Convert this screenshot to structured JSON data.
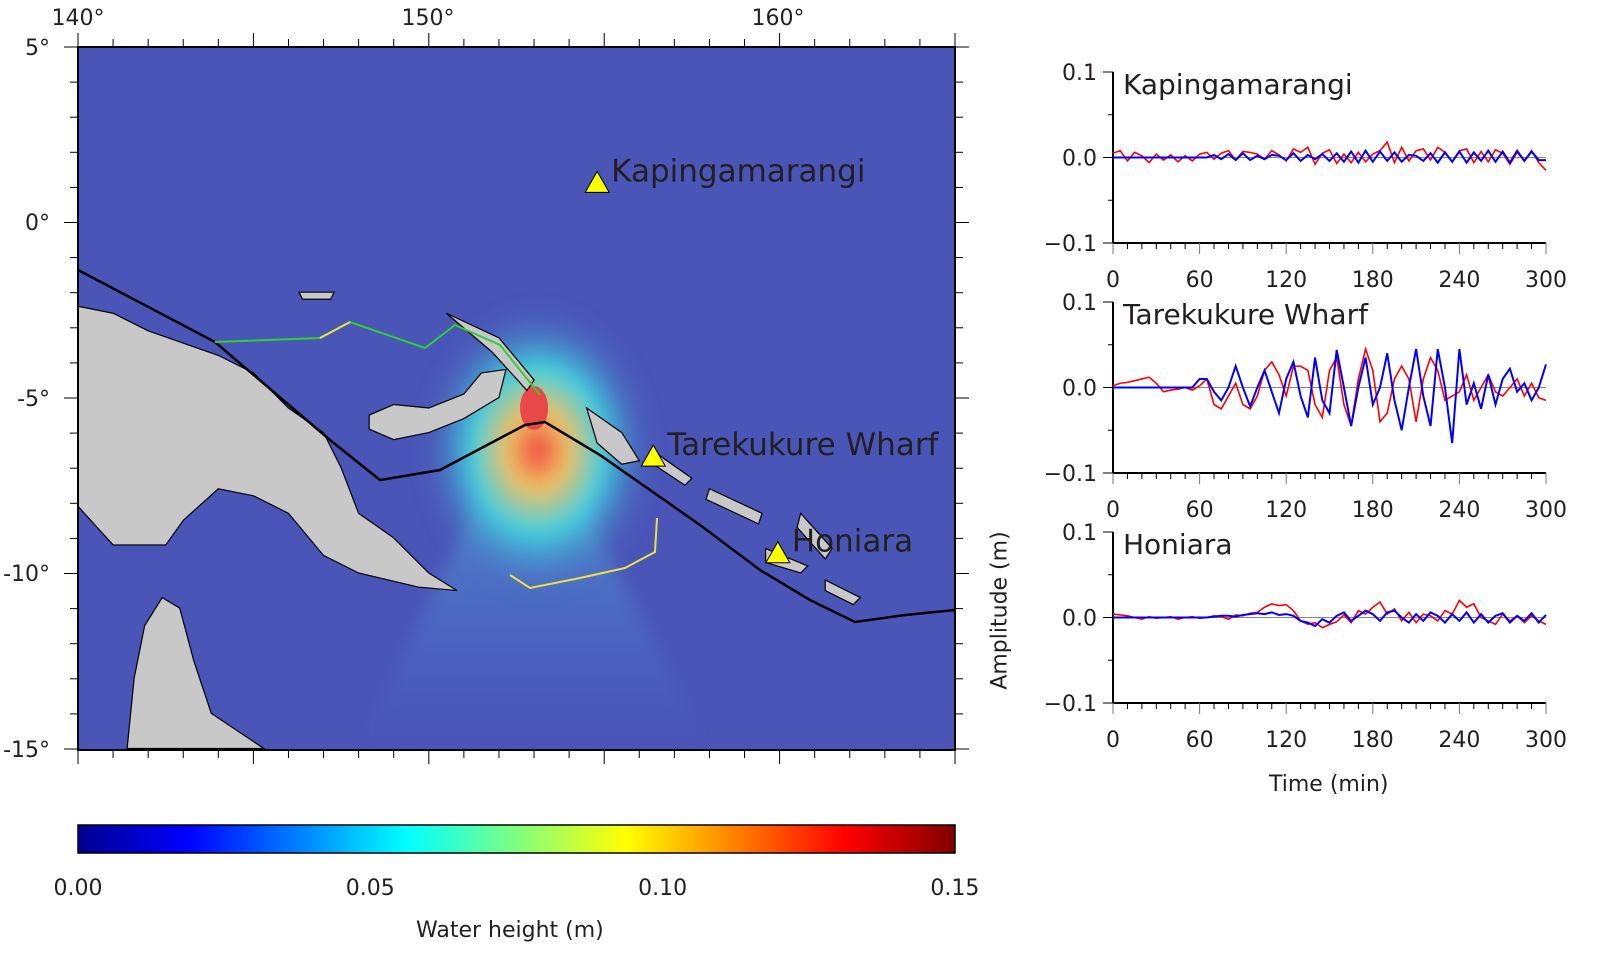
{
  "map": {
    "lon_labels": [
      "140°",
      "150°",
      "160°"
    ],
    "lat_labels": [
      "5°",
      "0°",
      "-5°",
      "-10°",
      "-15°"
    ],
    "stations": [
      {
        "name": "Kapingamarangi",
        "lon": 154.8,
        "lat": 1.1
      },
      {
        "name": "Tarekukure Wharf",
        "lon": 156.4,
        "lat": -6.7
      },
      {
        "name": "Honiara",
        "lon": 159.95,
        "lat": -9.45
      }
    ],
    "ocean_color": "#4a55b8",
    "land_color": "#c8c8c8",
    "marker_color": "#ffff00"
  },
  "colorbar": {
    "label": "Water height (m)",
    "ticks": [
      "0.00",
      "0.05",
      "0.10",
      "0.15"
    ],
    "range": [
      0,
      0.15
    ],
    "colormap": "jet"
  },
  "chart_data": [
    {
      "type": "line",
      "title": "Kapingamarangi",
      "xlabel": "Time (min)",
      "ylabel": "Amplitude (m)",
      "xlim": [
        0,
        300
      ],
      "ylim": [
        -0.1,
        0.1
      ],
      "xticks": [
        "0",
        "60",
        "120",
        "180",
        "240",
        "300"
      ],
      "yticks": [
        "0.1",
        "0.0",
        "−0.1"
      ],
      "x_start": 0,
      "x_step": 5,
      "series": [
        {
          "color": "#ff0000",
          "values": [
            0.005,
            0.008,
            -0.004,
            0.006,
            0.002,
            -0.006,
            0.004,
            -0.003,
            0.003,
            -0.005,
            0.002,
            -0.004,
            0.004,
            0.006,
            -0.002,
            0.005,
            0.008,
            -0.003,
            0.007,
            0.006,
            0.004,
            -0.002,
            0.008,
            0.003,
            -0.004,
            0.01,
            0.006,
            0.012,
            -0.008,
            0.005,
            0.009,
            -0.007,
            0.004,
            -0.006,
            0.006,
            -0.005,
            0.004,
            0.008,
            0.018,
            -0.006,
            0.012,
            -0.004,
            0.008,
            0.01,
            -0.003,
            0.012,
            0.006,
            -0.005,
            0.008,
            0.01,
            -0.006,
            0.007,
            -0.005,
            0.009,
            0.005,
            -0.008,
            0.006,
            -0.004,
            0.008,
            -0.006,
            -0.015
          ]
        },
        {
          "color": "#0000ff",
          "values": [
            0,
            0,
            0,
            0,
            0,
            0,
            0,
            0,
            0,
            0,
            0,
            0,
            0,
            0,
            0.003,
            -0.002,
            0.004,
            -0.003,
            0.005,
            -0.003,
            0.002,
            -0.002,
            0.003,
            0.002,
            -0.003,
            0.005,
            -0.004,
            0.003,
            -0.002,
            0.004,
            -0.004,
            0.005,
            -0.005,
            0.007,
            -0.006,
            0.008,
            -0.005,
            0.007,
            -0.004,
            0.006,
            -0.005,
            0.003,
            0.002,
            -0.004,
            0.005,
            -0.006,
            0.006,
            -0.005,
            0.007,
            -0.006,
            0.006,
            -0.004,
            0.008,
            -0.005,
            0.007,
            -0.006,
            0.008,
            -0.004,
            0.007,
            -0.003,
            -0.003
          ]
        }
      ]
    },
    {
      "type": "line",
      "title": "Tarekukure Wharf",
      "xlabel": "Time (min)",
      "ylabel": "Amplitude (m)",
      "xlim": [
        0,
        300
      ],
      "ylim": [
        -0.1,
        0.1
      ],
      "xticks": [
        "0",
        "60",
        "120",
        "180",
        "240",
        "300"
      ],
      "yticks": [
        "0.1",
        "0.0",
        "−0.1"
      ],
      "x_start": 0,
      "x_step": 5,
      "series": [
        {
          "color": "#ff0000",
          "values": [
            0.002,
            0.005,
            0.006,
            0.008,
            0.01,
            0.012,
            0.005,
            -0.005,
            -0.003,
            -0.002,
            0.0,
            -0.003,
            0.002,
            0.01,
            -0.02,
            -0.025,
            -0.01,
            0.005,
            -0.02,
            -0.025,
            -0.01,
            0.02,
            0.03,
            0.015,
            -0.01,
            0.025,
            0.025,
            0.02,
            -0.02,
            -0.035,
            0.02,
            0.035,
            -0.02,
            -0.045,
            0.01,
            0.045,
            0.02,
            -0.04,
            -0.03,
            0.01,
            0.025,
            0.01,
            -0.04,
            0.01,
            0.035,
            0.02,
            -0.015,
            -0.01,
            -0.005,
            0.015,
            -0.015,
            0.0,
            0.015,
            -0.005,
            -0.01,
            0.0,
            0.01,
            -0.01,
            0.005,
            -0.012,
            -0.015
          ]
        },
        {
          "color": "#0000ff",
          "values": [
            0,
            0,
            0,
            0,
            0,
            0,
            0,
            0,
            0,
            0,
            0,
            0,
            0.01,
            0.01,
            -0.005,
            -0.015,
            0.0,
            0.025,
            0.0,
            -0.022,
            0.0,
            0.02,
            -0.005,
            -0.03,
            0.01,
            0.03,
            -0.01,
            -0.035,
            0.035,
            -0.015,
            -0.03,
            0.044,
            0.0,
            -0.045,
            0.0,
            0.035,
            -0.02,
            0.0,
            0.04,
            -0.015,
            -0.05,
            0.0,
            0.045,
            -0.01,
            -0.045,
            0.045,
            0.0,
            -0.065,
            0.045,
            -0.02,
            0.005,
            -0.025,
            0.015,
            -0.02,
            0.01,
            0.022,
            -0.005,
            0.005,
            -0.015,
            0.0,
            0.027
          ]
        }
      ]
    },
    {
      "type": "line",
      "title": "Honiara",
      "xlabel": "Time (min)",
      "ylabel": "Amplitude (m)",
      "xlim": [
        0,
        300
      ],
      "ylim": [
        -0.1,
        0.1
      ],
      "xticks": [
        "0",
        "60",
        "120",
        "180",
        "240",
        "300"
      ],
      "yticks": [
        "0.1",
        "0.0",
        "−0.1"
      ],
      "x_start": 0,
      "x_step": 5,
      "series": [
        {
          "color": "#ff0000",
          "values": [
            0.004,
            0.003,
            0.002,
            0.0,
            -0.002,
            0.001,
            -0.001,
            0.0,
            0.001,
            -0.002,
            0.0,
            0.001,
            -0.001,
            0.0,
            0.002,
            0.001,
            -0.002,
            0.003,
            0.002,
            0.005,
            0.006,
            0.012,
            0.016,
            0.014,
            0.015,
            0.008,
            -0.004,
            -0.008,
            -0.006,
            -0.012,
            -0.008,
            -0.005,
            0.003,
            -0.006,
            0.008,
            0.004,
            0.012,
            0.018,
            0.004,
            0.01,
            -0.004,
            0.006,
            -0.006,
            0.004,
            0.002,
            -0.004,
            0.008,
            0.004,
            0.02,
            0.012,
            0.016,
            0.0,
            -0.004,
            -0.008,
            0.004,
            -0.004,
            0.002,
            -0.006,
            0.002,
            -0.004,
            -0.008
          ]
        },
        {
          "color": "#0000ff",
          "values": [
            0,
            0,
            0,
            0,
            0,
            0,
            0,
            0,
            0,
            0,
            0,
            0,
            0,
            0,
            0.001,
            0.002,
            0.002,
            0.001,
            0.003,
            0.004,
            0.005,
            0.004,
            0.006,
            0.003,
            0.004,
            0.002,
            -0.004,
            -0.006,
            -0.01,
            -0.002,
            -0.006,
            0.002,
            0.006,
            -0.004,
            0.002,
            0.008,
            0.004,
            -0.004,
            0.006,
            0.008,
            0.0,
            -0.006,
            0.004,
            -0.004,
            0.006,
            0.002,
            -0.006,
            0.004,
            -0.004,
            0.006,
            -0.006,
            0.004,
            -0.006,
            0.002,
            0.005,
            -0.006,
            0.002,
            -0.004,
            0.005,
            -0.006,
            0.003
          ]
        }
      ]
    }
  ]
}
